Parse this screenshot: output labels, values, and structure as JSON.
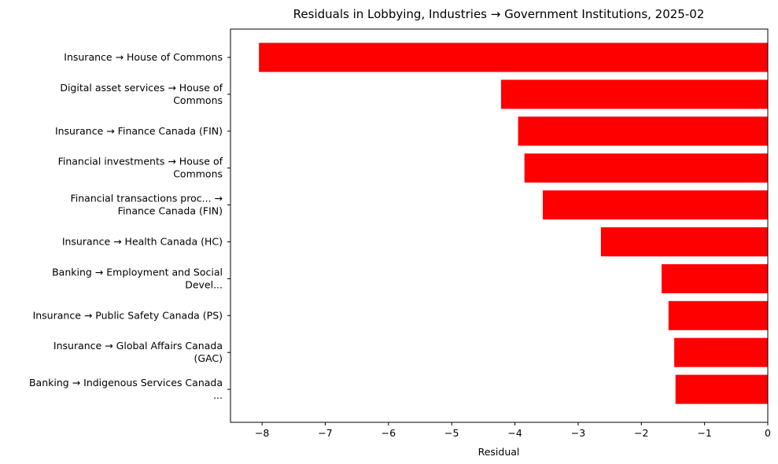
{
  "chart_data": {
    "type": "bar",
    "orientation": "horizontal",
    "title": "Residuals in Lobbying, Industries → Government Institutions, 2025-02",
    "xlabel": "Residual",
    "ylabel": "",
    "xlim": [
      -8.5,
      0
    ],
    "xticks": [
      -8,
      -7,
      -6,
      -5,
      -4,
      -3,
      -2,
      -1,
      0
    ],
    "xtick_labels": [
      "−8",
      "−7",
      "−6",
      "−5",
      "−4",
      "−3",
      "−2",
      "−1",
      "0"
    ],
    "grid": false,
    "bar_color": "#ff0000",
    "categories": [
      [
        "Insurance → House of Commons"
      ],
      [
        "Digital asset services → House of",
        "Commons"
      ],
      [
        "Insurance → Finance Canada (FIN)"
      ],
      [
        "Financial investments → House of",
        "Commons"
      ],
      [
        "Financial transactions proc... →",
        "Finance Canada (FIN)"
      ],
      [
        "Insurance → Health Canada (HC)"
      ],
      [
        "Banking → Employment and Social",
        "Devel..."
      ],
      [
        "Insurance → Public Safety Canada (PS)"
      ],
      [
        "Insurance → Global Affairs Canada",
        "(GAC)"
      ],
      [
        "Banking → Indigenous Services Canada",
        "..."
      ]
    ],
    "values": [
      -8.05,
      -4.22,
      -3.95,
      -3.85,
      -3.56,
      -2.64,
      -1.68,
      -1.57,
      -1.48,
      -1.46
    ]
  }
}
